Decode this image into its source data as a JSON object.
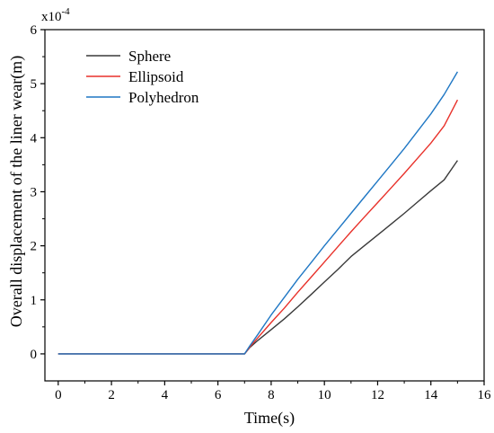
{
  "chart_data": {
    "type": "line",
    "title": "",
    "xlabel": "Time(s)",
    "ylabel": "Overall displacement of the liner wear(m)",
    "y_multiplier_label": {
      "base": "x10",
      "exponent": "-4"
    },
    "xlim": [
      -0.5,
      16
    ],
    "ylim": [
      -0.5,
      6
    ],
    "x_ticks": [
      0,
      2,
      4,
      6,
      8,
      10,
      12,
      14,
      16
    ],
    "y_ticks": [
      0,
      1,
      2,
      3,
      4,
      5,
      6
    ],
    "grid": false,
    "legend_position": "top-left",
    "series": [
      {
        "name": "Sphere",
        "color": "#3a3a3a",
        "x": [
          0,
          7.0,
          7.2,
          7.5,
          8.0,
          8.5,
          9.0,
          9.5,
          10.0,
          10.5,
          11.0,
          11.5,
          12.0,
          12.5,
          13.0,
          13.5,
          14.0,
          14.5,
          15.0
        ],
        "y": [
          0,
          0,
          0.12,
          0.25,
          0.45,
          0.65,
          0.87,
          1.1,
          1.33,
          1.56,
          1.8,
          2.0,
          2.2,
          2.4,
          2.6,
          2.81,
          3.02,
          3.22,
          3.58
        ]
      },
      {
        "name": "Ellipsoid",
        "color": "#e8312a",
        "x": [
          0,
          7.0,
          7.2,
          7.5,
          8.0,
          8.5,
          9.0,
          9.5,
          10.0,
          10.5,
          11.0,
          11.5,
          12.0,
          12.5,
          13.0,
          13.5,
          14.0,
          14.5,
          15.0
        ],
        "y": [
          0,
          0,
          0.13,
          0.3,
          0.58,
          0.85,
          1.14,
          1.42,
          1.7,
          1.98,
          2.26,
          2.53,
          2.8,
          3.07,
          3.34,
          3.62,
          3.9,
          4.22,
          4.7
        ]
      },
      {
        "name": "Polyhedron",
        "color": "#1f77c4",
        "x": [
          0,
          7.0,
          7.2,
          7.5,
          8.0,
          8.5,
          9.0,
          9.5,
          10.0,
          10.5,
          11.0,
          11.5,
          12.0,
          12.5,
          13.0,
          13.5,
          14.0,
          14.5,
          15.0
        ],
        "y": [
          0,
          0,
          0.15,
          0.36,
          0.72,
          1.05,
          1.38,
          1.69,
          2.0,
          2.3,
          2.6,
          2.9,
          3.2,
          3.5,
          3.8,
          4.12,
          4.44,
          4.8,
          5.22
        ]
      }
    ]
  }
}
